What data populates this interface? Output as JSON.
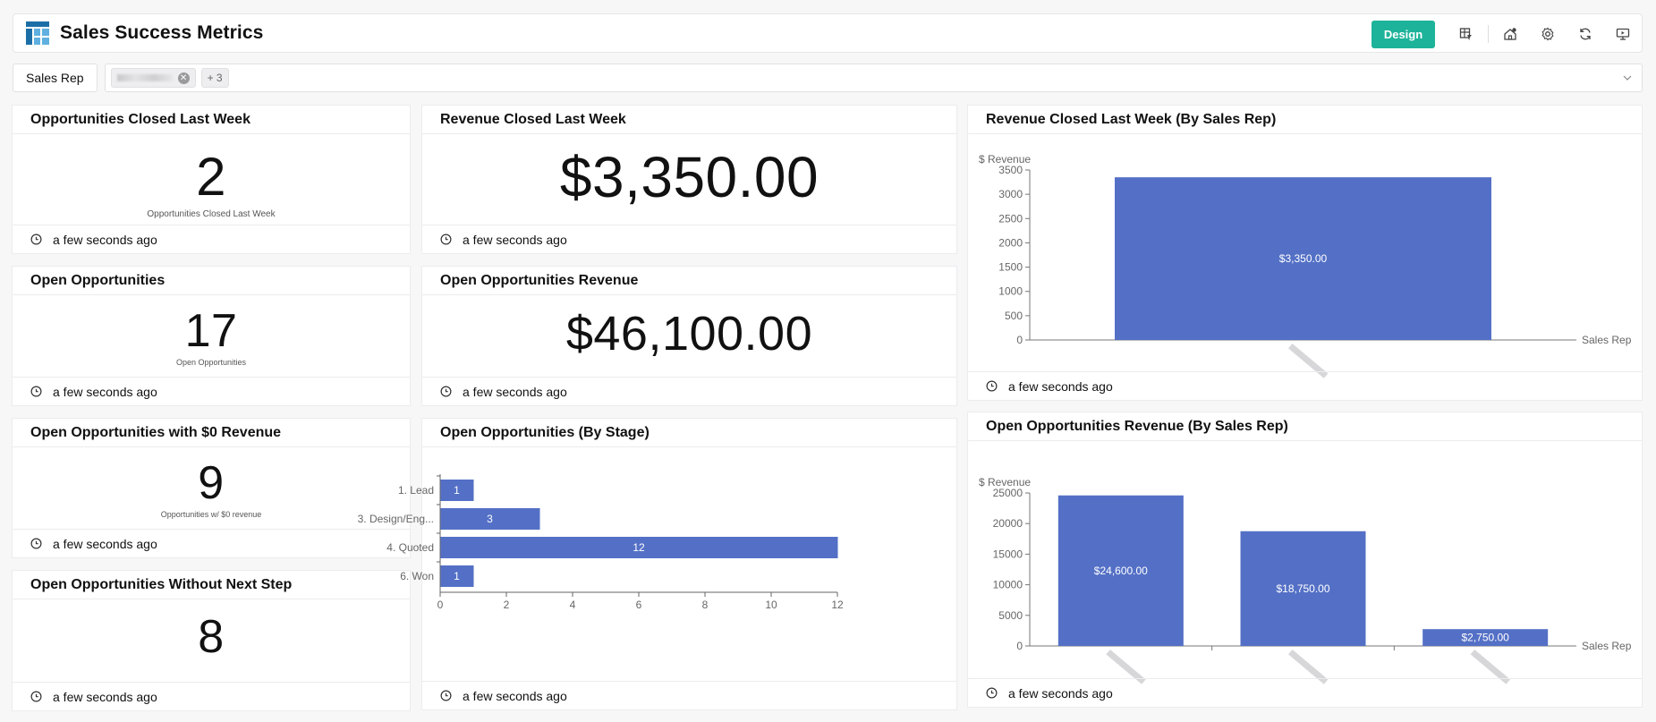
{
  "header": {
    "title": "Sales Success Metrics",
    "design_label": "Design",
    "brand_color": "#1db39a",
    "icons": [
      "table-logo-icon",
      "dashboard-filter-icon",
      "alert-home-icon",
      "gear-icon",
      "refresh-icon",
      "present-icon"
    ]
  },
  "filter": {
    "label": "Sales Rep",
    "more_label": "+ 3"
  },
  "cards": {
    "opp_closed": {
      "title": "Opportunities Closed Last Week",
      "value": "2",
      "label": "Opportunities Closed Last Week",
      "updated": "a few seconds ago"
    },
    "rev_closed": {
      "title": "Revenue Closed Last Week",
      "value": "$3,350.00",
      "updated": "a few seconds ago"
    },
    "open_opps": {
      "title": "Open Opportunities",
      "value": "17",
      "label": "Open Opportunities",
      "updated": "a few seconds ago"
    },
    "open_rev": {
      "title": "Open Opportunities Revenue",
      "value": "$46,100.00",
      "updated": "a few seconds ago"
    },
    "zero_rev": {
      "title": "Open Opportunities with $0 Revenue",
      "value": "9",
      "label": "Opportunities w/ $0 revenue",
      "updated": "a few seconds ago"
    },
    "no_next": {
      "title": "Open Opportunities Without Next Step",
      "value": "8",
      "updated": "a few seconds ago"
    },
    "by_stage": {
      "title": "Open Opportunities (By Stage)",
      "updated": "a few seconds ago"
    },
    "rev_by_rep": {
      "title": "Revenue Closed Last Week (By Sales Rep)",
      "updated": "a few seconds ago"
    },
    "open_rev_by_rep": {
      "title": "Open Opportunities Revenue (By Sales Rep)",
      "updated": "a few seconds ago"
    }
  },
  "chart_data": [
    {
      "id": "by_stage",
      "type": "bar",
      "orientation": "horizontal",
      "categories": [
        "1. Lead",
        "3. Design/Eng...",
        "4. Quoted",
        "6. Won"
      ],
      "values": [
        1,
        3,
        12,
        1
      ],
      "data_labels": [
        "1",
        "3",
        "12",
        "1"
      ],
      "xlim": [
        0,
        12
      ],
      "xticks": [
        "0",
        "2",
        "4",
        "6",
        "8",
        "10",
        "12"
      ],
      "color": "#5470c6"
    },
    {
      "id": "rev_by_rep",
      "type": "bar",
      "ylabel": "$ Revenue",
      "xlabel": "Sales Rep",
      "categories": [
        ""
      ],
      "values": [
        3350
      ],
      "data_labels": [
        "$3,350.00"
      ],
      "ylim": [
        0,
        3500
      ],
      "yticks": [
        "0",
        "500",
        "1000",
        "1500",
        "2000",
        "2500",
        "3000",
        "3500"
      ],
      "color": "#5470c6"
    },
    {
      "id": "open_rev_by_rep",
      "type": "bar",
      "ylabel": "$ Revenue",
      "xlabel": "Sales Rep",
      "categories": [
        "",
        "",
        ""
      ],
      "values": [
        24600,
        18750,
        2750
      ],
      "data_labels": [
        "$24,600.00",
        "$18,750.00",
        "$2,750.00"
      ],
      "ylim": [
        0,
        25000
      ],
      "yticks": [
        "0",
        "5000",
        "10000",
        "15000",
        "20000",
        "25000"
      ],
      "color": "#5470c6"
    }
  ]
}
